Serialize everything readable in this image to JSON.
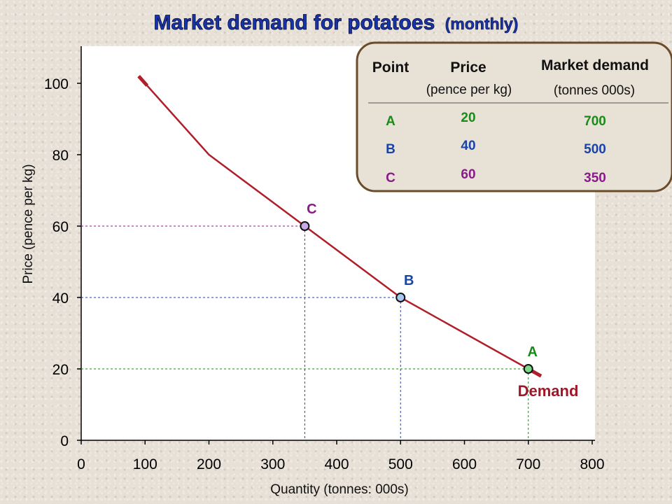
{
  "chart_data": {
    "type": "line",
    "title": "Market demand for potatoes",
    "title_suffix": "(monthly)",
    "xlabel": "Quantity (tonnes: 000s)",
    "ylabel": "Price (pence per kg)",
    "xlim": [
      0,
      800
    ],
    "ylim": [
      0,
      110
    ],
    "x_ticks": [
      "0",
      "100",
      "200",
      "300",
      "400",
      "500",
      "600",
      "700",
      "800"
    ],
    "y_ticks": [
      "0",
      "20",
      "40",
      "60",
      "80",
      "100"
    ],
    "grid": false,
    "series": [
      {
        "name": "Demand",
        "color": "#b01e2a",
        "x": [
          90,
          200,
          350,
          500,
          700,
          720
        ],
        "y": [
          102,
          80,
          60,
          40,
          20,
          18
        ]
      }
    ],
    "points": [
      {
        "label": "A",
        "x": 700,
        "y": 20,
        "color": "#1a8a1a",
        "fill": "#7fd88a",
        "guide_color": "#1a8a1a"
      },
      {
        "label": "B",
        "x": 500,
        "y": 40,
        "color": "#1a43a8",
        "fill": "#a8c8f0",
        "guide_color": "#1a43a8"
      },
      {
        "label": "C",
        "x": 350,
        "y": 60,
        "color": "#8a1a8a",
        "fill": "#c8a8e8",
        "guide_color": "#8a1a8a"
      }
    ],
    "table": {
      "headers": {
        "point": "Point",
        "price": "Price",
        "demand": "Market demand"
      },
      "units": {
        "price": "(pence per kg)",
        "demand": "(tonnes 000s)"
      },
      "rows": [
        {
          "point": "A",
          "price": "20",
          "demand": "700",
          "point_color": "#1a8a1a",
          "price_color": "#1a8a1a",
          "demand_color": "#1a8a1a"
        },
        {
          "point": "B",
          "price": "40",
          "demand": "500",
          "point_color": "#1a43a8",
          "price_color": "#1a43a8",
          "demand_color": "#1a43a8"
        },
        {
          "point": "C",
          "price": "60",
          "demand": "350",
          "point_color": "#8a1a8a",
          "price_color": "#8a1a8a",
          "demand_color": "#8a1a8a"
        }
      ]
    }
  }
}
